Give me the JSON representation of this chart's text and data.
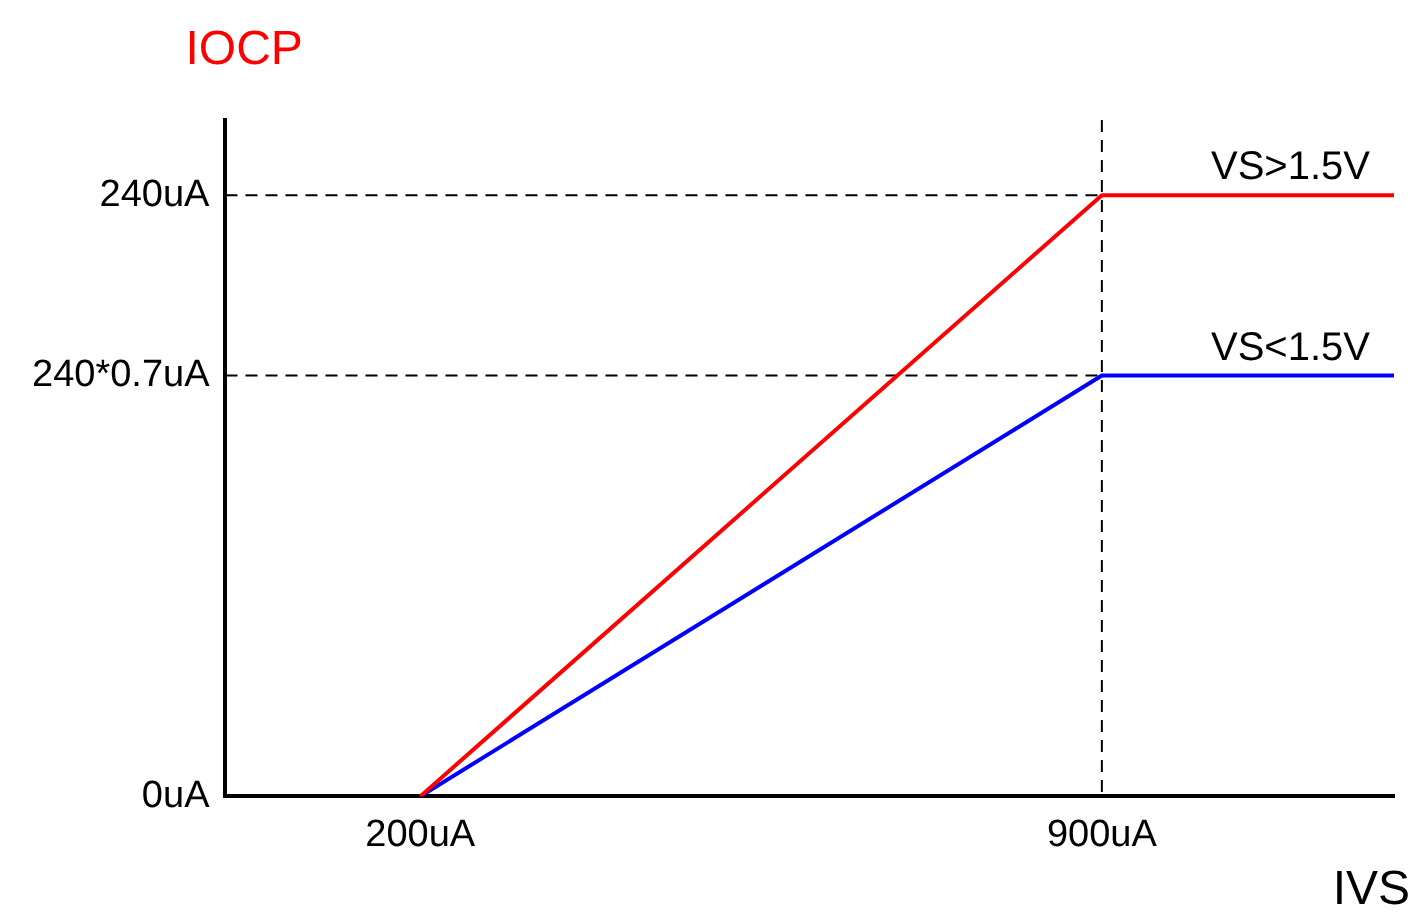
{
  "chart_data": {
    "type": "line",
    "ylabel": "IOCP",
    "xlabel": "IVS",
    "xlim": [
      0,
      1200
    ],
    "xticks": [
      {
        "value": 200,
        "label": "200uA"
      },
      {
        "value": 900,
        "label": "900uA"
      }
    ],
    "ylim": [
      0,
      270
    ],
    "yticks": [
      {
        "value": 0,
        "label": "0uA"
      },
      {
        "value": 168,
        "label": "240*0.7uA"
      },
      {
        "value": 240,
        "label": "240uA"
      }
    ],
    "x": [
      200,
      900,
      1200
    ],
    "series": [
      {
        "name": "VS>1.5V",
        "color": "#ff0000",
        "values": [
          0,
          240,
          240
        ]
      },
      {
        "name": "VS<1.5V",
        "color": "#0000ff",
        "values": [
          0,
          168,
          168
        ]
      }
    ],
    "ref_lines": [
      {
        "axis": "y",
        "value": 240,
        "color": "#000000",
        "line_style": "dashed"
      },
      {
        "axis": "y",
        "value": 168,
        "color": "#000000",
        "line_style": "dashed"
      },
      {
        "axis": "x",
        "value": 900,
        "color": "#000000",
        "line_style": "dashed"
      }
    ],
    "grid": false,
    "legend": false,
    "marker": "none",
    "line_style": "solid"
  }
}
